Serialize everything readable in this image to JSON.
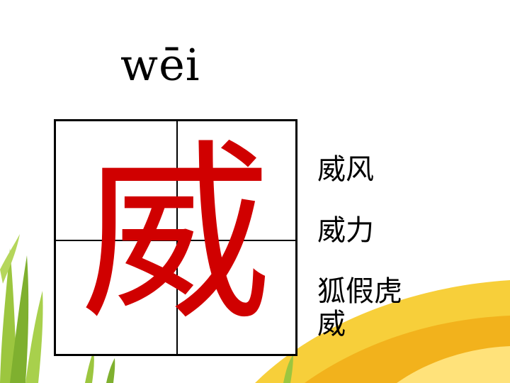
{
  "pinyin": "wēi",
  "character": "威",
  "words": [
    "威风",
    "威力",
    "狐假虎威"
  ],
  "colors": {
    "character": "#d00000",
    "grid_lines": "#000000",
    "decor_yellow": "#f5c21a",
    "decor_green": "#8fbf3a"
  }
}
